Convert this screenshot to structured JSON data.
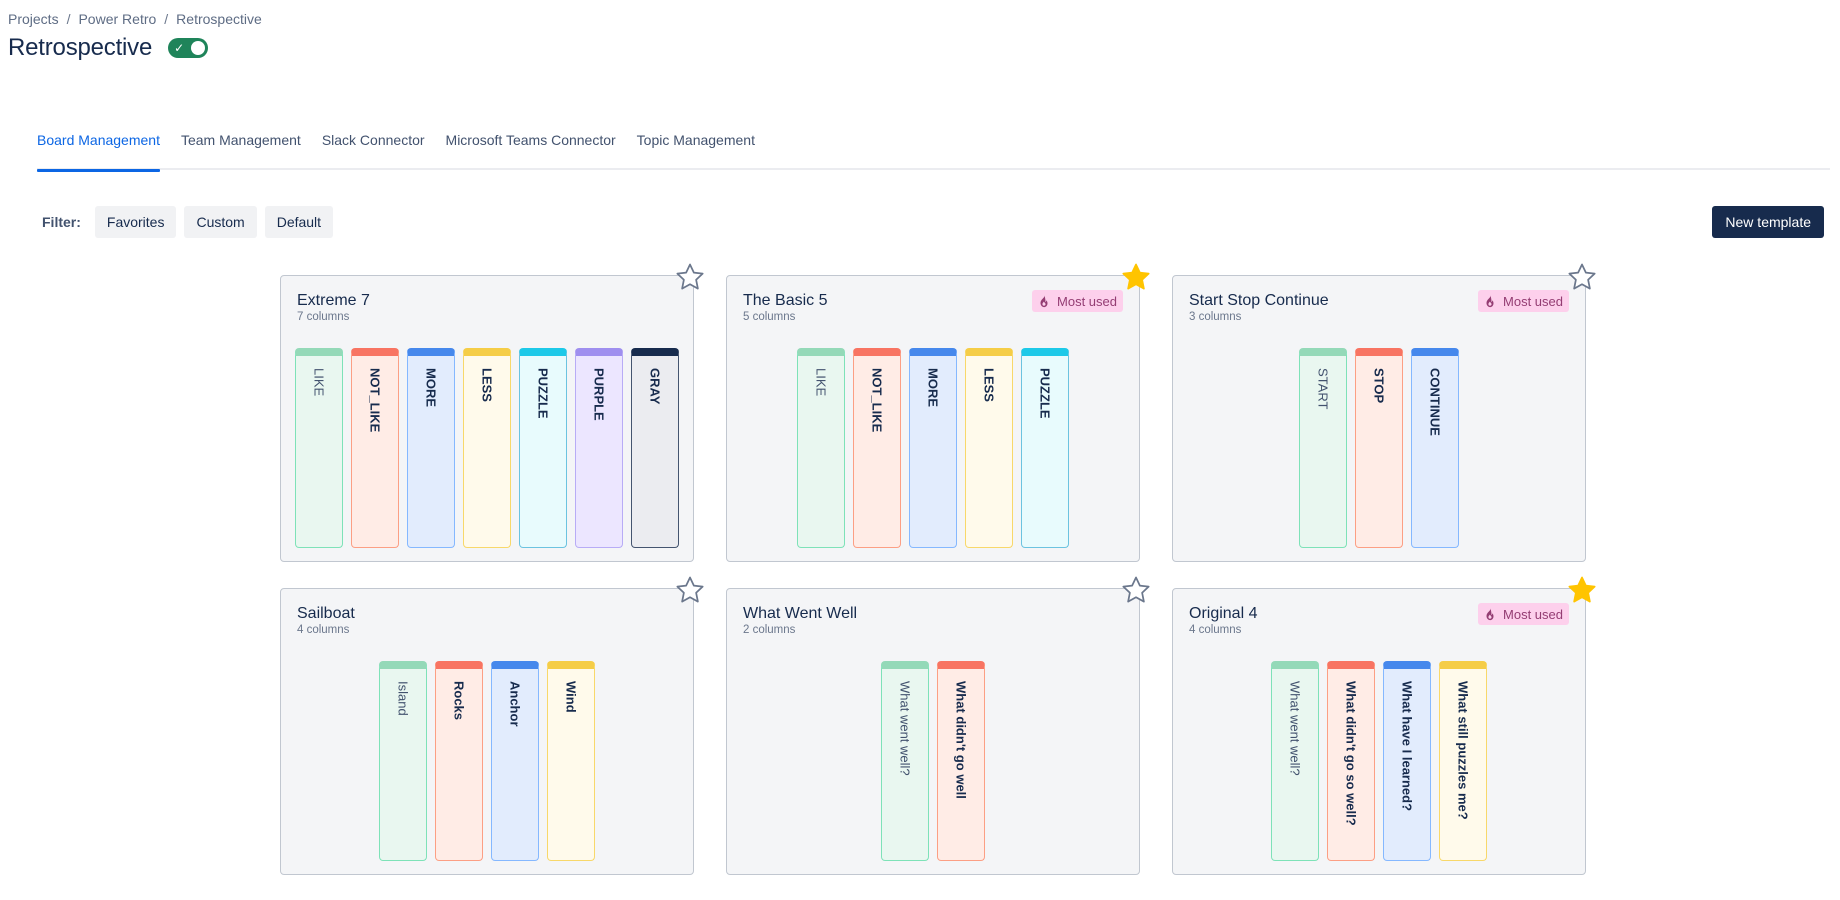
{
  "breadcrumb": [
    "Projects",
    "Power Retro",
    "Retrospective"
  ],
  "breadcrumb_separator": "/",
  "page": {
    "title": "Retrospective",
    "toggle_on": true
  },
  "tabs": [
    {
      "label": "Board Management",
      "active": true
    },
    {
      "label": "Team Management",
      "active": false
    },
    {
      "label": "Slack Connector",
      "active": false
    },
    {
      "label": "Microsoft Teams Connector",
      "active": false
    },
    {
      "label": "Topic Management",
      "active": false
    }
  ],
  "filter": {
    "label": "Filter:",
    "options": [
      "Favorites",
      "Custom",
      "Default"
    ]
  },
  "new_template_label": "New template",
  "badge_label": "Most used",
  "colors": {
    "accent": "#0c66e4",
    "primary_button": "#172b4d",
    "star_filled": "#ffc400",
    "badge_bg": "#fdd0ec"
  },
  "templates": [
    {
      "title": "Extreme 7",
      "subtitle": "7 columns",
      "favorite": false,
      "most_used": false,
      "columns": [
        {
          "label": "LIKE",
          "color": "green"
        },
        {
          "label": "NOT_LIKE",
          "color": "red"
        },
        {
          "label": "MORE",
          "color": "blue"
        },
        {
          "label": "LESS",
          "color": "yellow"
        },
        {
          "label": "PUZZLE",
          "color": "teal"
        },
        {
          "label": "PURPLE",
          "color": "purple"
        },
        {
          "label": "GRAY",
          "color": "gray"
        }
      ]
    },
    {
      "title": "The Basic 5",
      "subtitle": "5 columns",
      "favorite": true,
      "most_used": true,
      "columns": [
        {
          "label": "LIKE",
          "color": "green"
        },
        {
          "label": "NOT_LIKE",
          "color": "red"
        },
        {
          "label": "MORE",
          "color": "blue"
        },
        {
          "label": "LESS",
          "color": "yellow"
        },
        {
          "label": "PUZZLE",
          "color": "teal"
        }
      ]
    },
    {
      "title": "Start Stop Continue",
      "subtitle": "3 columns",
      "favorite": false,
      "most_used": true,
      "columns": [
        {
          "label": "START",
          "color": "green"
        },
        {
          "label": "STOP",
          "color": "red"
        },
        {
          "label": "CONTINUE",
          "color": "blue"
        }
      ]
    },
    {
      "title": "Sailboat",
      "subtitle": "4 columns",
      "favorite": false,
      "most_used": false,
      "columns": [
        {
          "label": "Island",
          "color": "green"
        },
        {
          "label": "Rocks",
          "color": "red"
        },
        {
          "label": "Anchor",
          "color": "blue"
        },
        {
          "label": "Wind",
          "color": "yellow"
        }
      ]
    },
    {
      "title": "What Went Well",
      "subtitle": "2 columns",
      "favorite": false,
      "most_used": false,
      "columns": [
        {
          "label": "What went well?",
          "color": "green"
        },
        {
          "label": "What didn't go well",
          "color": "red"
        }
      ]
    },
    {
      "title": "Original 4",
      "subtitle": "4 columns",
      "favorite": true,
      "most_used": true,
      "columns": [
        {
          "label": "What went well?",
          "color": "green"
        },
        {
          "label": "What didn't go so well?",
          "color": "red"
        },
        {
          "label": "What have I learned?",
          "color": "blue"
        },
        {
          "label": "What still puzzles me?",
          "color": "yellow"
        }
      ]
    }
  ]
}
